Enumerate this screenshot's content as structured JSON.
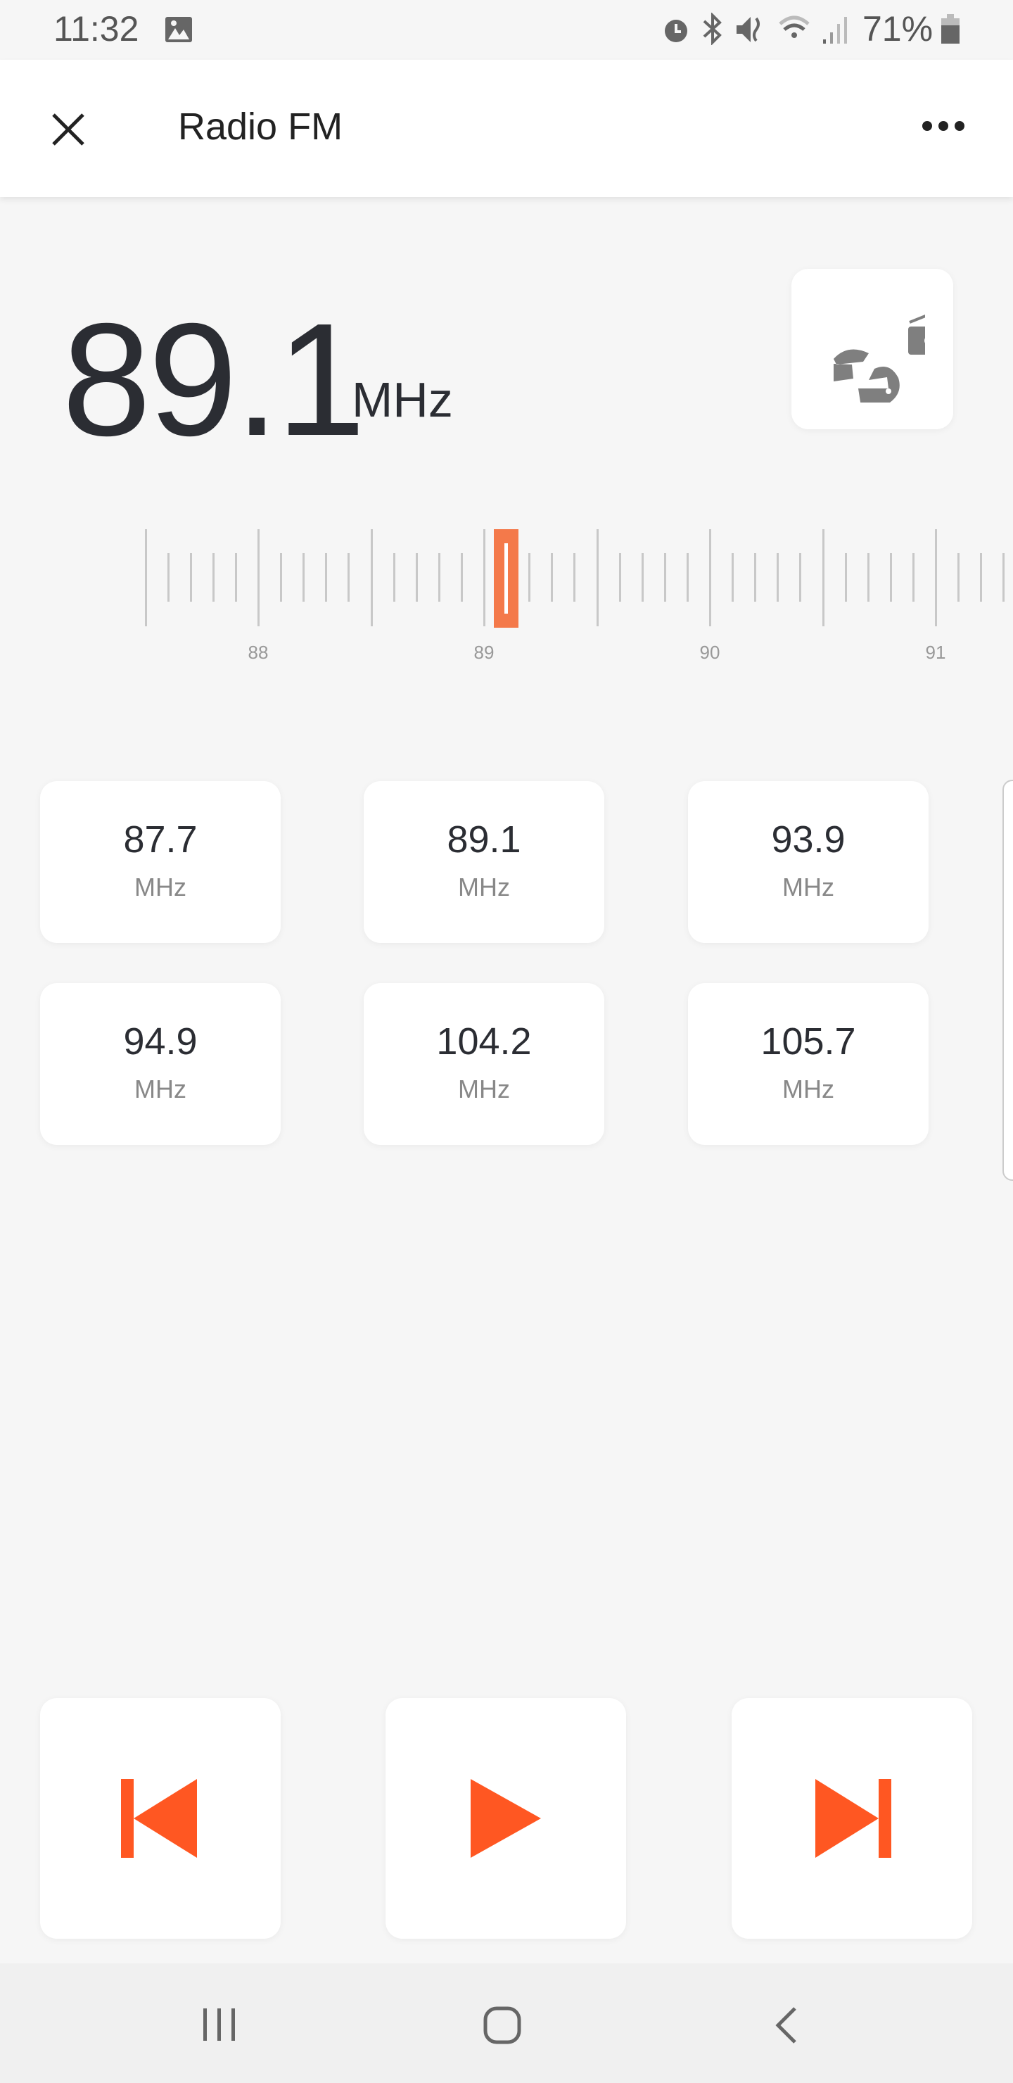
{
  "status_bar": {
    "time": "11:32",
    "battery": "71%",
    "icons": [
      "gallery-icon",
      "alarm-icon",
      "bluetooth-icon",
      "mute-icon",
      "wifi-icon",
      "signal-icon",
      "battery-icon"
    ]
  },
  "app_bar": {
    "title": "Radio FM",
    "close_icon": "close-icon",
    "more_icon": "more-icon"
  },
  "tuner": {
    "frequency": "89.1",
    "unit": "MHz",
    "scale_labels": [
      "88",
      "89",
      "90",
      "91"
    ],
    "current_value": 89.1,
    "accent": "#f4794a"
  },
  "presets": [
    {
      "value": "87.7",
      "unit": "MHz"
    },
    {
      "value": "89.1",
      "unit": "MHz"
    },
    {
      "value": "93.9",
      "unit": "MHz"
    },
    {
      "value": "94.9",
      "unit": "MHz"
    },
    {
      "value": "104.2",
      "unit": "MHz"
    },
    {
      "value": "105.7",
      "unit": "MHz"
    }
  ],
  "controls": {
    "color": "#ff5722",
    "buttons": [
      "previous",
      "play",
      "next"
    ]
  }
}
